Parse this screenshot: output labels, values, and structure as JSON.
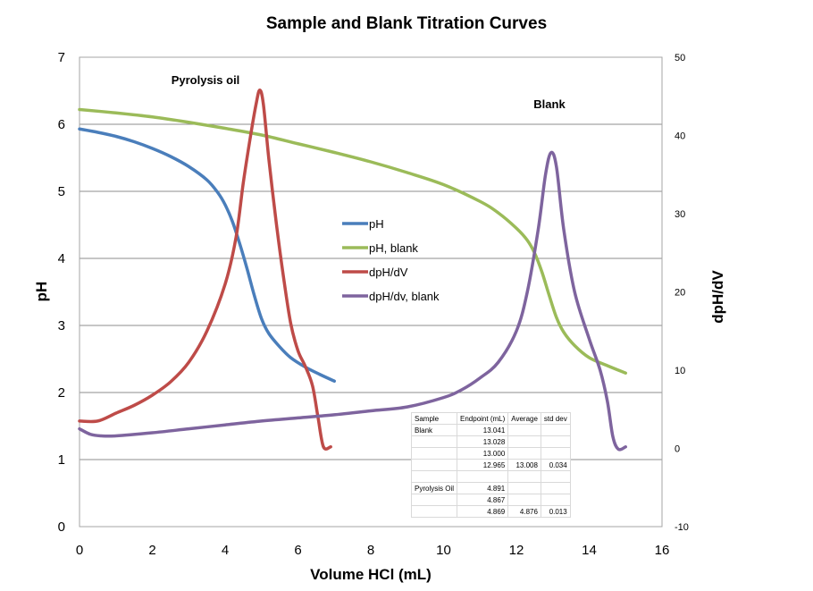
{
  "chart_data": {
    "type": "line",
    "title": "Sample and Blank Titration Curves",
    "xlabel": "Volume  HCl (mL)",
    "ylabel": "pH",
    "y2label": "dpH/dV",
    "xlim": [
      0,
      16
    ],
    "ylim": [
      0,
      7
    ],
    "y2lim": [
      -10,
      50
    ],
    "x_ticks": [
      "0",
      "2",
      "4",
      "6",
      "8",
      "10",
      "12",
      "14",
      "16"
    ],
    "y_ticks": [
      "0",
      "1",
      "2",
      "3",
      "4",
      "5",
      "6",
      "7"
    ],
    "y2_ticks": [
      "-10",
      "0",
      "10",
      "20",
      "30",
      "40",
      "50"
    ],
    "grid": "horizontal major gridlines",
    "legend_position": "center",
    "annotations": [
      {
        "text": "Pyrolysis oil",
        "x": 4.7,
        "y": 6.65
      },
      {
        "text": "Blank",
        "x": 12.9,
        "y": 6.3
      }
    ],
    "series": [
      {
        "name": "pH",
        "axis": "left",
        "color": "#4a7ebb",
        "points": [
          [
            0,
            5.93
          ],
          [
            0.5,
            5.88
          ],
          [
            1,
            5.82
          ],
          [
            1.5,
            5.74
          ],
          [
            2,
            5.64
          ],
          [
            2.5,
            5.52
          ],
          [
            3,
            5.37
          ],
          [
            3.5,
            5.17
          ],
          [
            3.8,
            4.98
          ],
          [
            4.0,
            4.8
          ],
          [
            4.2,
            4.55
          ],
          [
            4.4,
            4.22
          ],
          [
            4.6,
            3.85
          ],
          [
            4.8,
            3.45
          ],
          [
            5.0,
            3.1
          ],
          [
            5.2,
            2.88
          ],
          [
            5.5,
            2.68
          ],
          [
            5.8,
            2.52
          ],
          [
            6.2,
            2.38
          ],
          [
            6.6,
            2.27
          ],
          [
            7.0,
            2.17
          ]
        ]
      },
      {
        "name": "pH, blank",
        "axis": "left",
        "color": "#9bbb59",
        "points": [
          [
            0,
            6.22
          ],
          [
            1,
            6.17
          ],
          [
            2,
            6.11
          ],
          [
            3,
            6.03
          ],
          [
            4,
            5.94
          ],
          [
            5,
            5.84
          ],
          [
            6,
            5.71
          ],
          [
            7,
            5.58
          ],
          [
            8,
            5.44
          ],
          [
            9,
            5.28
          ],
          [
            10,
            5.1
          ],
          [
            11,
            4.85
          ],
          [
            11.5,
            4.68
          ],
          [
            12,
            4.45
          ],
          [
            12.3,
            4.27
          ],
          [
            12.5,
            4.08
          ],
          [
            12.7,
            3.8
          ],
          [
            12.9,
            3.45
          ],
          [
            13.1,
            3.12
          ],
          [
            13.3,
            2.9
          ],
          [
            13.6,
            2.7
          ],
          [
            14,
            2.52
          ],
          [
            14.5,
            2.4
          ],
          [
            15,
            2.29
          ]
        ]
      },
      {
        "name": "dpH/dV",
        "axis": "right",
        "color": "#be4b48",
        "points": [
          [
            0,
            3.5
          ],
          [
            0.5,
            3.5
          ],
          [
            1,
            4.5
          ],
          [
            1.5,
            5.5
          ],
          [
            2,
            6.8
          ],
          [
            2.5,
            8.5
          ],
          [
            3,
            11
          ],
          [
            3.5,
            15
          ],
          [
            4,
            21
          ],
          [
            4.3,
            27
          ],
          [
            4.5,
            34
          ],
          [
            4.7,
            40
          ],
          [
            4.85,
            44
          ],
          [
            4.95,
            45.8
          ],
          [
            5.05,
            44
          ],
          [
            5.2,
            37
          ],
          [
            5.4,
            29
          ],
          [
            5.6,
            22
          ],
          [
            5.8,
            16
          ],
          [
            6.0,
            12.5
          ],
          [
            6.2,
            10.5
          ],
          [
            6.4,
            8
          ],
          [
            6.55,
            4
          ],
          [
            6.7,
            0.2
          ],
          [
            6.9,
            0.2
          ]
        ]
      },
      {
        "name": "dpH/dv, blank",
        "axis": "right",
        "color": "#7e649e",
        "points": [
          [
            0,
            2.5
          ],
          [
            0.3,
            1.8
          ],
          [
            0.6,
            1.6
          ],
          [
            1,
            1.6
          ],
          [
            2,
            2
          ],
          [
            3,
            2.5
          ],
          [
            4,
            3
          ],
          [
            5,
            3.5
          ],
          [
            6,
            3.9
          ],
          [
            7,
            4.3
          ],
          [
            8,
            4.8
          ],
          [
            9,
            5.3
          ],
          [
            10,
            6.5
          ],
          [
            10.5,
            7.5
          ],
          [
            11,
            9
          ],
          [
            11.5,
            11
          ],
          [
            12,
            15
          ],
          [
            12.3,
            20
          ],
          [
            12.6,
            28
          ],
          [
            12.8,
            35
          ],
          [
            12.95,
            37.8
          ],
          [
            13.1,
            36
          ],
          [
            13.3,
            28
          ],
          [
            13.6,
            20
          ],
          [
            14,
            14
          ],
          [
            14.3,
            10
          ],
          [
            14.5,
            6
          ],
          [
            14.65,
            1.5
          ],
          [
            14.8,
            -0.1
          ],
          [
            15,
            0.2
          ]
        ]
      }
    ]
  },
  "table": {
    "headers": [
      "Sample",
      "Endpoint (mL)",
      "Average",
      "std dev"
    ],
    "rows": [
      [
        "Blank",
        "13.041",
        "",
        ""
      ],
      [
        "",
        "13.028",
        "",
        ""
      ],
      [
        "",
        "13.000",
        "",
        ""
      ],
      [
        "",
        "12.965",
        "13.008",
        "0.034"
      ],
      [
        "",
        "",
        "",
        ""
      ],
      [
        "Pyrolysis Oil",
        "4.891",
        "",
        ""
      ],
      [
        "",
        "4.867",
        "",
        ""
      ],
      [
        "",
        "4.869",
        "4.876",
        "0.013"
      ]
    ]
  }
}
